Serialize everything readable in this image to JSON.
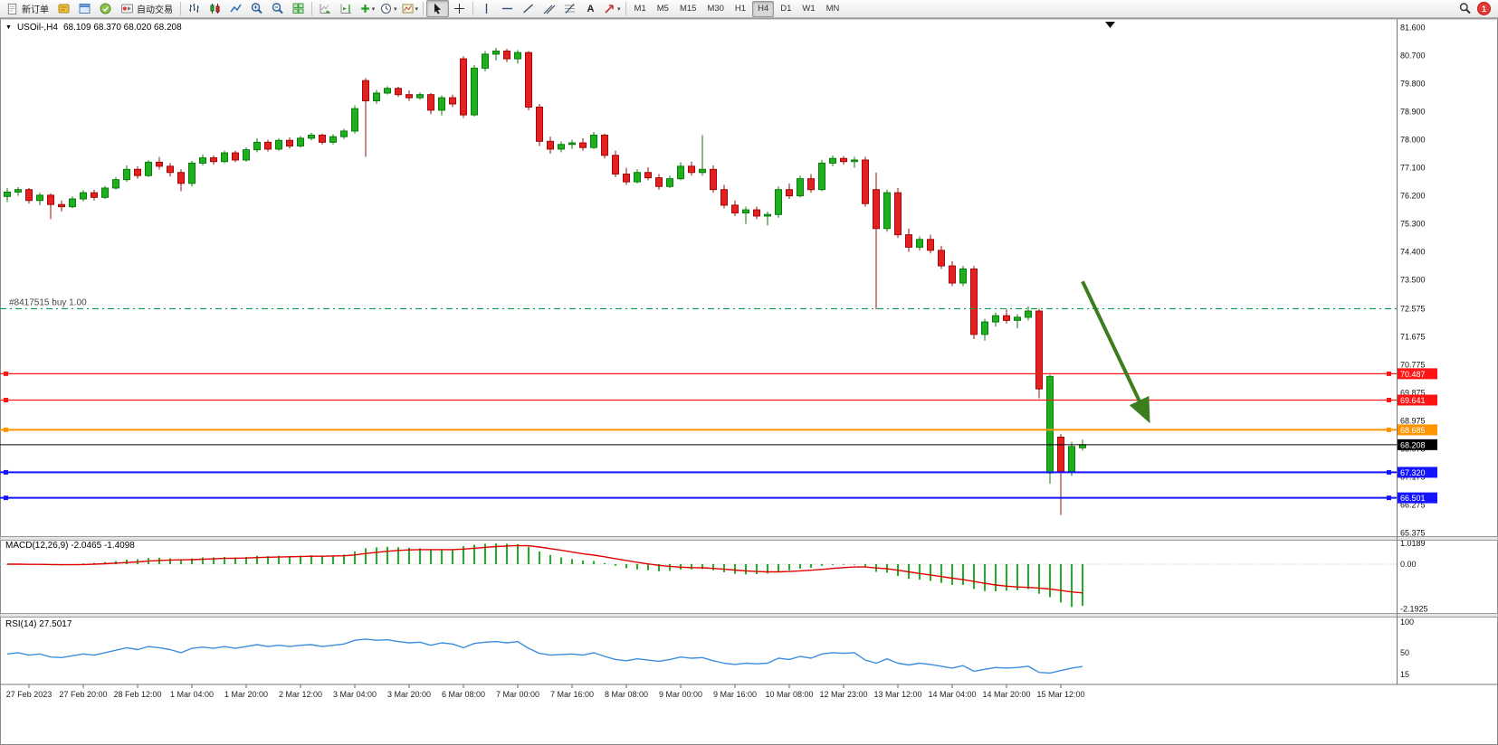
{
  "toolbar": {
    "new_order": "新订单",
    "auto_trading": "自动交易",
    "timeframes": [
      "M1",
      "M5",
      "M15",
      "M30",
      "H1",
      "H4",
      "D1",
      "W1",
      "MN"
    ],
    "active_timeframe": "H4",
    "notification_badge": "1"
  },
  "icons": {
    "text_tool_glyph": "A",
    "collapse_arrow_glyph": "▼",
    "caret_glyph": "▾"
  },
  "chart_header": {
    "symbol_period": "USOil-,H4",
    "ohlc": "68.109 68.370 68.020 68.208"
  },
  "indicator_labels": {
    "macd": "MACD(12,26,9) -2.0465 -1.4098",
    "rsi": "RSI(14) 27.5017"
  },
  "chart_data": [
    {
      "type": "candlestick",
      "symbol": "USOil",
      "period": "H4",
      "ylim": [
        65.3,
        81.85
      ],
      "y_ticks": [
        "81.600",
        "80.700",
        "79.800",
        "78.900",
        "78.000",
        "77.100",
        "76.200",
        "75.300",
        "74.400",
        "73.500",
        "72.575",
        "71.675",
        "70.775",
        "69.875",
        "68.975",
        "68.075",
        "67.175",
        "66.275",
        "65.375"
      ],
      "x_labels": [
        "27 Feb 2023",
        "27 Feb 20:00",
        "28 Feb 12:00",
        "1 Mar 04:00",
        "1 Mar 20:00",
        "2 Mar 12:00",
        "3 Mar 04:00",
        "3 Mar 20:00",
        "6 Mar 08:00",
        "7 Mar 00:00",
        "7 Mar 16:00",
        "8 Mar 08:00",
        "9 Mar 00:00",
        "9 Mar 16:00",
        "10 Mar 08:00",
        "12 Mar 23:00",
        "13 Mar 12:00",
        "14 Mar 04:00",
        "14 Mar 20:00",
        "15 Mar 12:00"
      ],
      "x_label_indexes": [
        2,
        7,
        12,
        17,
        22,
        27,
        32,
        37,
        42,
        47,
        52,
        57,
        62,
        67,
        72,
        77,
        82,
        87,
        92,
        97
      ],
      "candles": [
        [
          76.18,
          76.45,
          76.0,
          76.32
        ],
        [
          76.32,
          76.48,
          76.2,
          76.4
        ],
        [
          76.4,
          76.45,
          75.95,
          76.05
        ],
        [
          76.05,
          76.3,
          75.9,
          76.22
        ],
        [
          76.22,
          76.28,
          75.45,
          75.92
        ],
        [
          75.92,
          76.05,
          75.7,
          75.85
        ],
        [
          75.85,
          76.18,
          75.8,
          76.1
        ],
        [
          76.1,
          76.38,
          76.02,
          76.3
        ],
        [
          76.3,
          76.4,
          76.05,
          76.15
        ],
        [
          76.15,
          76.52,
          76.1,
          76.45
        ],
        [
          76.45,
          76.8,
          76.4,
          76.72
        ],
        [
          76.72,
          77.18,
          76.65,
          77.05
        ],
        [
          77.05,
          77.15,
          76.75,
          76.85
        ],
        [
          76.85,
          77.35,
          76.8,
          77.28
        ],
        [
          77.28,
          77.45,
          77.05,
          77.15
        ],
        [
          77.15,
          77.25,
          76.82,
          76.95
        ],
        [
          76.95,
          77.05,
          76.35,
          76.6
        ],
        [
          76.6,
          77.32,
          76.5,
          77.25
        ],
        [
          77.25,
          77.52,
          77.18,
          77.42
        ],
        [
          77.42,
          77.5,
          77.2,
          77.3
        ],
        [
          77.3,
          77.65,
          77.25,
          77.58
        ],
        [
          77.58,
          77.65,
          77.28,
          77.35
        ],
        [
          77.35,
          77.75,
          77.3,
          77.68
        ],
        [
          77.68,
          78.05,
          77.6,
          77.92
        ],
        [
          77.92,
          78.0,
          77.62,
          77.7
        ],
        [
          77.7,
          78.05,
          77.65,
          77.98
        ],
        [
          77.98,
          78.08,
          77.72,
          77.8
        ],
        [
          77.8,
          78.12,
          77.75,
          78.05
        ],
        [
          78.05,
          78.22,
          77.98,
          78.15
        ],
        [
          78.15,
          78.2,
          77.85,
          77.92
        ],
        [
          77.92,
          78.18,
          77.85,
          78.1
        ],
        [
          78.1,
          78.35,
          78.02,
          78.28
        ],
        [
          78.28,
          79.1,
          78.2,
          79.0
        ],
        [
          79.9,
          79.98,
          77.45,
          79.25
        ],
        [
          79.25,
          79.6,
          79.15,
          79.5
        ],
        [
          79.5,
          79.72,
          79.45,
          79.65
        ],
        [
          79.65,
          79.7,
          79.38,
          79.45
        ],
        [
          79.45,
          79.58,
          79.25,
          79.35
        ],
        [
          79.35,
          79.52,
          79.28,
          79.45
        ],
        [
          79.45,
          79.5,
          78.82,
          78.95
        ],
        [
          78.95,
          79.42,
          78.78,
          79.35
        ],
        [
          79.35,
          79.45,
          79.05,
          79.15
        ],
        [
          80.6,
          80.68,
          78.7,
          78.8
        ],
        [
          78.8,
          80.4,
          78.75,
          80.3
        ],
        [
          80.3,
          80.85,
          80.2,
          80.75
        ],
        [
          80.75,
          80.95,
          80.55,
          80.85
        ],
        [
          80.85,
          80.92,
          80.5,
          80.6
        ],
        [
          80.6,
          80.88,
          80.45,
          80.8
        ],
        [
          80.8,
          80.85,
          78.95,
          79.05
        ],
        [
          79.05,
          79.15,
          77.8,
          77.95
        ],
        [
          77.95,
          78.1,
          77.55,
          77.7
        ],
        [
          77.7,
          77.95,
          77.6,
          77.85
        ],
        [
          77.85,
          78.0,
          77.7,
          77.9
        ],
        [
          77.9,
          78.05,
          77.65,
          77.75
        ],
        [
          77.75,
          78.25,
          77.7,
          78.15
        ],
        [
          78.15,
          78.2,
          77.4,
          77.5
        ],
        [
          77.5,
          77.65,
          76.8,
          76.9
        ],
        [
          76.9,
          77.1,
          76.55,
          76.65
        ],
        [
          76.65,
          77.05,
          76.6,
          76.95
        ],
        [
          76.95,
          77.12,
          76.7,
          76.78
        ],
        [
          76.78,
          76.9,
          76.4,
          76.5
        ],
        [
          76.5,
          76.85,
          76.45,
          76.75
        ],
        [
          76.75,
          77.28,
          76.7,
          77.15
        ],
        [
          77.15,
          77.3,
          76.85,
          76.95
        ],
        [
          76.95,
          78.15,
          76.85,
          77.05
        ],
        [
          77.05,
          77.18,
          76.3,
          76.4
        ],
        [
          76.4,
          76.55,
          75.8,
          75.9
        ],
        [
          75.9,
          76.05,
          75.55,
          75.65
        ],
        [
          75.65,
          75.85,
          75.3,
          75.75
        ],
        [
          75.75,
          75.85,
          75.45,
          75.55
        ],
        [
          75.55,
          75.7,
          75.25,
          75.6
        ],
        [
          75.6,
          76.5,
          75.5,
          76.4
        ],
        [
          76.4,
          76.6,
          76.1,
          76.2
        ],
        [
          76.2,
          76.85,
          76.15,
          76.75
        ],
        [
          76.75,
          76.9,
          76.3,
          76.4
        ],
        [
          76.4,
          77.35,
          76.35,
          77.25
        ],
        [
          77.25,
          77.5,
          77.15,
          77.4
        ],
        [
          77.4,
          77.48,
          77.2,
          77.3
        ],
        [
          77.3,
          77.45,
          77.1,
          77.35
        ],
        [
          77.35,
          77.45,
          75.85,
          75.95
        ],
        [
          76.4,
          76.95,
          72.55,
          75.15
        ],
        [
          75.15,
          76.4,
          75.05,
          76.3
        ],
        [
          76.3,
          76.45,
          74.85,
          74.95
        ],
        [
          74.95,
          75.15,
          74.4,
          74.55
        ],
        [
          74.55,
          74.9,
          74.45,
          74.8
        ],
        [
          74.8,
          74.95,
          74.35,
          74.45
        ],
        [
          74.45,
          74.6,
          73.85,
          73.95
        ],
        [
          73.95,
          74.1,
          73.3,
          73.4
        ],
        [
          73.4,
          73.95,
          73.3,
          73.85
        ],
        [
          73.85,
          73.95,
          71.6,
          71.75
        ],
        [
          71.75,
          72.25,
          71.55,
          72.15
        ],
        [
          72.15,
          72.45,
          72.0,
          72.35
        ],
        [
          72.35,
          72.55,
          72.1,
          72.2
        ],
        [
          72.2,
          72.4,
          71.95,
          72.3
        ],
        [
          72.3,
          72.65,
          72.2,
          72.5
        ],
        [
          72.5,
          72.58,
          69.7,
          70.0
        ],
        [
          67.3,
          70.45,
          66.95,
          70.4
        ],
        [
          68.45,
          68.55,
          65.95,
          67.35
        ],
        [
          67.35,
          68.3,
          67.2,
          68.15
        ],
        [
          68.109,
          68.37,
          68.02,
          68.208
        ]
      ],
      "up_color": "#1fb01f",
      "down_color": "#e62020",
      "trade_line": {
        "price": 72.575,
        "label": "#8417515 buy 1.00",
        "color": "#00a050"
      },
      "levels": [
        {
          "price": 70.487,
          "color": "#ff1414",
          "width": 1.2
        },
        {
          "price": 69.641,
          "color": "#ff1414",
          "width": 1.2
        },
        {
          "price": 68.685,
          "color": "#ff9400",
          "width": 2
        },
        {
          "price": 67.32,
          "color": "#1414ff",
          "width": 2
        },
        {
          "price": 66.501,
          "color": "#1414ff",
          "width": 2
        }
      ],
      "current_price": {
        "value": 68.208,
        "line_color": "#000000",
        "badge_bg": "#000000"
      },
      "annotation_arrow": {
        "from_index": 99,
        "from_price": 73.45,
        "to_index": 105,
        "to_price": 69.05,
        "color": "#3c7d1f",
        "width": 4
      }
    },
    {
      "type": "bar",
      "name": "MACD(12,26,9)",
      "main_value": -2.0465,
      "signal_value": -1.4098,
      "ylim": [
        -2.35,
        1.15
      ],
      "y_ticks": [
        {
          "v": 1.0189,
          "t": "1.0189"
        },
        {
          "v": 0,
          "t": "0.00"
        },
        {
          "v": -2.1925,
          "t": "-2.1925"
        }
      ],
      "histogram_color": "#1faf1f",
      "signal_color": "#e00000",
      "histogram": [
        -0.02,
        0.0,
        -0.03,
        0.01,
        -0.05,
        -0.06,
        -0.02,
        0.03,
        0.06,
        0.1,
        0.15,
        0.22,
        0.24,
        0.3,
        0.31,
        0.28,
        0.22,
        0.28,
        0.33,
        0.33,
        0.36,
        0.33,
        0.36,
        0.41,
        0.39,
        0.41,
        0.4,
        0.42,
        0.44,
        0.41,
        0.43,
        0.47,
        0.62,
        0.78,
        0.82,
        0.85,
        0.83,
        0.8,
        0.78,
        0.72,
        0.72,
        0.68,
        0.88,
        0.95,
        1.0,
        1.02,
        1.0,
        0.98,
        0.85,
        0.62,
        0.45,
        0.33,
        0.25,
        0.18,
        0.15,
        0.05,
        -0.08,
        -0.2,
        -0.26,
        -0.3,
        -0.35,
        -0.33,
        -0.27,
        -0.26,
        -0.24,
        -0.3,
        -0.4,
        -0.47,
        -0.5,
        -0.49,
        -0.46,
        -0.36,
        -0.3,
        -0.22,
        -0.18,
        -0.08,
        -0.04,
        -0.02,
        -0.01,
        -0.15,
        -0.38,
        -0.42,
        -0.58,
        -0.72,
        -0.76,
        -0.82,
        -0.92,
        -1.02,
        -1.02,
        -1.22,
        -1.32,
        -1.33,
        -1.3,
        -1.27,
        -1.22,
        -1.45,
        -1.62,
        -1.88,
        -2.1,
        -2.0465
      ],
      "signal": [
        0.0,
        0.0,
        -0.01,
        -0.01,
        -0.02,
        -0.03,
        -0.03,
        -0.02,
        0.0,
        0.02,
        0.05,
        0.08,
        0.11,
        0.15,
        0.18,
        0.2,
        0.21,
        0.22,
        0.24,
        0.26,
        0.28,
        0.29,
        0.3,
        0.32,
        0.34,
        0.35,
        0.36,
        0.37,
        0.39,
        0.39,
        0.4,
        0.41,
        0.45,
        0.52,
        0.58,
        0.63,
        0.67,
        0.7,
        0.71,
        0.71,
        0.71,
        0.71,
        0.74,
        0.78,
        0.82,
        0.86,
        0.89,
        0.91,
        0.9,
        0.84,
        0.76,
        0.68,
        0.59,
        0.51,
        0.44,
        0.36,
        0.27,
        0.18,
        0.09,
        0.01,
        -0.06,
        -0.11,
        -0.15,
        -0.17,
        -0.18,
        -0.21,
        -0.25,
        -0.29,
        -0.33,
        -0.36,
        -0.38,
        -0.38,
        -0.36,
        -0.33,
        -0.3,
        -0.26,
        -0.21,
        -0.17,
        -0.14,
        -0.14,
        -0.19,
        -0.23,
        -0.3,
        -0.38,
        -0.46,
        -0.53,
        -0.61,
        -0.69,
        -0.76,
        -0.85,
        -0.94,
        -1.02,
        -1.08,
        -1.12,
        -1.14,
        -1.17,
        -1.22,
        -1.29,
        -1.36,
        -1.4098
      ]
    },
    {
      "type": "line",
      "name": "RSI(14)",
      "value": 27.5017,
      "ylim": [
        0,
        107
      ],
      "y_ticks": [
        {
          "v": 100,
          "t": "100"
        },
        {
          "v": 50,
          "t": "50"
        },
        {
          "v": 15,
          "t": "15"
        }
      ],
      "line_color": "#3e8ede",
      "values": [
        48,
        50,
        46,
        48,
        43,
        42,
        45,
        48,
        46,
        50,
        54,
        58,
        55,
        60,
        58,
        55,
        50,
        57,
        59,
        57,
        60,
        57,
        60,
        63,
        60,
        62,
        60,
        62,
        63,
        60,
        62,
        64,
        70,
        72,
        70,
        71,
        68,
        66,
        67,
        62,
        66,
        64,
        58,
        65,
        67,
        68,
        66,
        68,
        57,
        49,
        46,
        47,
        48,
        46,
        50,
        44,
        39,
        37,
        40,
        38,
        36,
        39,
        43,
        41,
        42,
        37,
        33,
        31,
        33,
        32,
        33,
        41,
        39,
        44,
        41,
        48,
        50,
        49,
        50,
        38,
        33,
        40,
        33,
        30,
        33,
        31,
        28,
        25,
        29,
        20,
        23,
        26,
        25,
        26,
        28,
        18,
        17,
        21,
        25,
        27.5017
      ]
    }
  ]
}
